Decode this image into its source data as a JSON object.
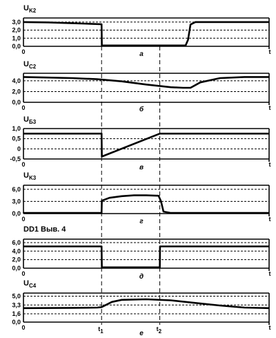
{
  "chart_data": [
    {
      "type": "line",
      "ylabel": "UK2",
      "ylabel_main": "U",
      "ylabel_sub": "K2",
      "yticks": [
        "3,0",
        "2,0",
        "1,0",
        "0,0"
      ],
      "ylim": [
        0,
        3.5
      ],
      "xlabel_origin": "0",
      "xlabel_end": "t",
      "caption": "а",
      "series": [
        {
          "x": [
            0,
            0.1,
            0.2,
            0.3,
            0.318,
            0.319,
            0.55,
            0.66,
            0.67,
            0.68,
            0.7,
            0.8,
            1.0
          ],
          "values": [
            3.0,
            2.95,
            2.85,
            2.75,
            2.72,
            0.1,
            0.1,
            0.1,
            0.8,
            2.7,
            3.0,
            3.0,
            3.0
          ]
        }
      ]
    },
    {
      "type": "line",
      "ylabel": "UC2",
      "ylabel_main": "U",
      "ylabel_sub": "C2",
      "yticks": [
        "4,0",
        "2,0",
        "0,0"
      ],
      "ylim": [
        0,
        5.4
      ],
      "xlabel_origin": "0",
      "xlabel_end": "t",
      "caption": "б",
      "series": [
        {
          "x": [
            0,
            0.1,
            0.2,
            0.3,
            0.4,
            0.5,
            0.6,
            0.65,
            0.68,
            0.72,
            0.8,
            0.9,
            1.0
          ],
          "values": [
            4.7,
            4.6,
            4.5,
            4.3,
            3.9,
            3.3,
            2.8,
            2.7,
            2.7,
            3.7,
            4.5,
            4.7,
            4.7
          ]
        }
      ]
    },
    {
      "type": "line",
      "ylabel": "UБ3",
      "ylabel_main": "U",
      "ylabel_sub": "Б3",
      "yticks": [
        "1,0",
        "0,5",
        "0",
        "-0,5"
      ],
      "ylim": [
        -0.5,
        1.0
      ],
      "xlabel_origin": "0",
      "xlabel_end": "t",
      "caption": "в",
      "series": [
        {
          "x": [
            0,
            0.318,
            0.319,
            0.555,
            1.0
          ],
          "values": [
            0.75,
            0.75,
            -0.38,
            0.75,
            0.75
          ]
        }
      ]
    },
    {
      "type": "line",
      "ylabel": "UK3",
      "ylabel_main": "U",
      "ylabel_sub": "K3",
      "yticks": [
        "6,0",
        "3,0",
        "0,0"
      ],
      "ylim": [
        0,
        7.0
      ],
      "xlabel_origin": "0",
      "xlabel_end": "t",
      "caption": "г",
      "series": [
        {
          "x": [
            0,
            0.318,
            0.319,
            0.35,
            0.4,
            0.45,
            0.5,
            0.55,
            0.56,
            0.57,
            0.6,
            1.0
          ],
          "values": [
            0.15,
            0.15,
            3.2,
            3.9,
            4.3,
            4.5,
            4.5,
            4.4,
            3.0,
            0.5,
            0.15,
            0.15
          ]
        }
      ]
    },
    {
      "type": "line",
      "ylabel": "DD1 Выв. 4",
      "yticks": [
        "6,0",
        "4,0",
        "2,0",
        "0,0"
      ],
      "ylim": [
        0,
        6.8
      ],
      "xlabel_origin": "0",
      "xlabel_end": "t",
      "caption": "д",
      "series": [
        {
          "x": [
            0,
            0.318,
            0.319,
            0.555,
            0.556,
            1.0
          ],
          "values": [
            5.1,
            5.1,
            0.2,
            0.2,
            5.1,
            5.1
          ]
        }
      ]
    },
    {
      "type": "line",
      "ylabel": "UC4",
      "ylabel_main": "U",
      "ylabel_sub": "C4",
      "yticks": [
        "5,0",
        "3,3",
        "1,6",
        "0,0"
      ],
      "ylim": [
        0,
        5.6
      ],
      "xlabel_origin": "0",
      "xlabel_end": "t",
      "xlabel_t1": "t1",
      "xlabel_t1_main": "t",
      "xlabel_t1_sub": "1",
      "xlabel_t2": "t2",
      "xlabel_t2_main": "t",
      "xlabel_t2_sub": "2",
      "caption": "е",
      "series": [
        {
          "x": [
            0,
            0.2,
            0.3,
            0.318,
            0.36,
            0.4,
            0.5,
            0.6,
            0.7,
            0.8,
            0.9,
            1.0
          ],
          "values": [
            2.7,
            2.75,
            2.8,
            2.9,
            3.9,
            4.3,
            4.4,
            4.2,
            3.7,
            3.2,
            2.8,
            2.7
          ]
        }
      ]
    }
  ],
  "markers": {
    "t1": 0.318,
    "t2": 0.555
  }
}
